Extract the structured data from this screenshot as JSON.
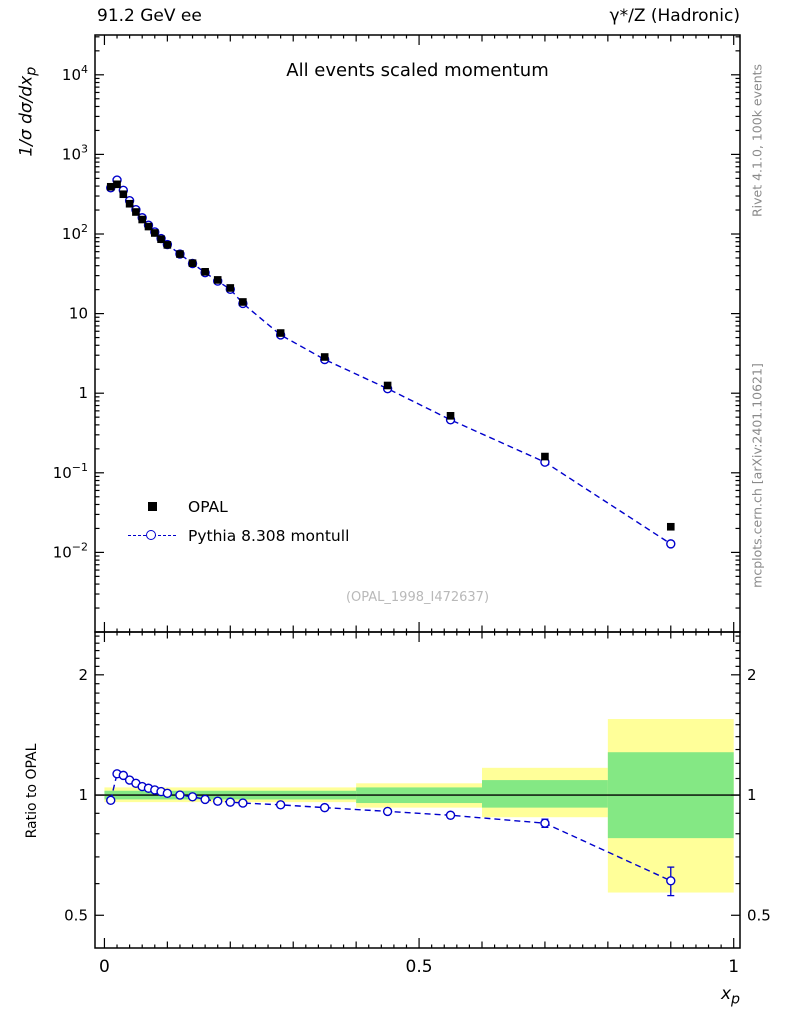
{
  "header": {
    "left_title": "91.2 GeV ee",
    "right_title": "γ*/Z (Hadronic)"
  },
  "side_labels": {
    "rivet": "Rivet 4.1.0,  100k events",
    "mcplots": "mcplots.cern.ch [arXiv:2401.10621]"
  },
  "watermark": "(OPAL_1998_I472637)",
  "colors": {
    "pythia_blue": "#0000cc",
    "data_black": "#000000",
    "band_yellow": "#ffff99",
    "band_green": "#84e884",
    "side_text_gray": "#8a8a8a",
    "watermark_gray": "#b9b9b9"
  },
  "chart_data": [
    {
      "panel": "main",
      "type": "line",
      "title": "All events scaled momentum",
      "ylabel": {
        "prefix": "1/σ  dσ/dx",
        "sub": "p"
      },
      "xlabel": {
        "prefix": "x",
        "sub": "p"
      },
      "xscale": "linear",
      "yscale": "log",
      "xlim": [
        -0.015,
        1.01
      ],
      "ylim": [
        0.001,
        31623
      ],
      "grid": false,
      "legend_position": "lower-left",
      "x": [
        0.01,
        0.02,
        0.03,
        0.04,
        0.05,
        0.06,
        0.07,
        0.08,
        0.09,
        0.1,
        0.12,
        0.14,
        0.16,
        0.18,
        0.2,
        0.22,
        0.28,
        0.35,
        0.45,
        0.55,
        0.7,
        0.9
      ],
      "series": [
        {
          "name": "OPAL",
          "style": "filled-square",
          "color": "#000000",
          "values": [
            392,
            421,
            316,
            240,
            189,
            152,
            124,
            103,
            86,
            73,
            56,
            43,
            33.5,
            26.5,
            21,
            14,
            5.7,
            2.85,
            1.25,
            0.52,
            0.16,
            0.021
          ]
        },
        {
          "name": "Pythia 8.308 montull",
          "style": "dashed-line-open-circle",
          "color": "#0000cc",
          "values": [
            380,
            476,
            354,
            262,
            202,
            160,
            129,
            106,
            87.7,
            73.7,
            56,
            42.6,
            32.7,
            25.6,
            20.2,
            13.4,
            5.39,
            2.65,
            1.14,
            0.463,
            0.136,
            0.0128
          ]
        }
      ]
    },
    {
      "panel": "ratio",
      "type": "line",
      "ylabel": "Ratio to OPAL",
      "yscale": "log",
      "ylim": [
        0.414,
        2.56
      ],
      "yticks": [
        0.5,
        1,
        2
      ],
      "xticks": [
        0,
        0.5,
        1
      ],
      "xtick_labels": [
        "0",
        "0.5",
        "1"
      ],
      "reference_line": 1,
      "x": [
        0.01,
        0.02,
        0.03,
        0.04,
        0.05,
        0.06,
        0.07,
        0.08,
        0.09,
        0.1,
        0.12,
        0.14,
        0.16,
        0.18,
        0.2,
        0.22,
        0.28,
        0.35,
        0.45,
        0.55,
        0.7,
        0.9
      ],
      "values": [
        0.97,
        1.13,
        1.12,
        1.09,
        1.07,
        1.05,
        1.04,
        1.03,
        1.02,
        1.01,
        1.0,
        0.99,
        0.975,
        0.965,
        0.96,
        0.955,
        0.945,
        0.93,
        0.91,
        0.89,
        0.85,
        0.61
      ],
      "errors": [
        0,
        0,
        0,
        0,
        0,
        0,
        0,
        0,
        0,
        0,
        0,
        0,
        0,
        0,
        0,
        0,
        0,
        0,
        0,
        0,
        0.02,
        0.05
      ],
      "bands": [
        {
          "x0": 0.0,
          "x1": 0.4,
          "yellow": [
            0.96,
            1.045
          ],
          "green": [
            0.975,
            1.025
          ]
        },
        {
          "x0": 0.4,
          "x1": 0.6,
          "yellow": [
            0.93,
            1.07
          ],
          "green": [
            0.955,
            1.045
          ]
        },
        {
          "x0": 0.6,
          "x1": 0.8,
          "yellow": [
            0.88,
            1.17
          ],
          "green": [
            0.93,
            1.09
          ]
        },
        {
          "x0": 0.8,
          "x1": 1.0,
          "yellow": [
            0.57,
            1.55
          ],
          "green": [
            0.78,
            1.28
          ]
        }
      ]
    }
  ]
}
